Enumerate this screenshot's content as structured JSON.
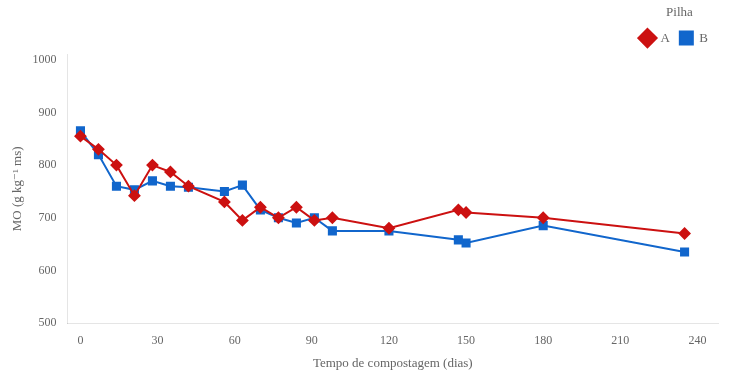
{
  "chart_data": {
    "type": "line",
    "xlabel": "Tempo de compostagem (dias)",
    "ylabel": "MO (g kg⁻¹ ms)",
    "legend_title": "Pilha",
    "legend": "upper right",
    "grid": false,
    "xlim": [
      -5,
      248
    ],
    "ylim": [
      500,
      1010
    ],
    "xticks": [
      0,
      30,
      60,
      90,
      120,
      150,
      180,
      210,
      240
    ],
    "yticks": [
      500,
      600,
      700,
      800,
      900,
      1000
    ],
    "x": [
      0,
      7,
      14,
      21,
      28,
      35,
      42,
      56,
      63,
      70,
      77,
      84,
      91,
      98,
      120,
      147,
      150,
      180,
      235
    ],
    "series": [
      {
        "name": "A",
        "color": "#cc1111",
        "marker": "diamond",
        "values": [
          855,
          830,
          800,
          742,
          800,
          787,
          760,
          730,
          695,
          720,
          700,
          720,
          695,
          700,
          680,
          715,
          710,
          700,
          670
        ]
      },
      {
        "name": "B",
        "color": "#1166cc",
        "marker": "square",
        "values": [
          865,
          820,
          760,
          753,
          770,
          760,
          758,
          750,
          762,
          715,
          700,
          690,
          700,
          675,
          675,
          658,
          652,
          685,
          635
        ]
      }
    ]
  }
}
